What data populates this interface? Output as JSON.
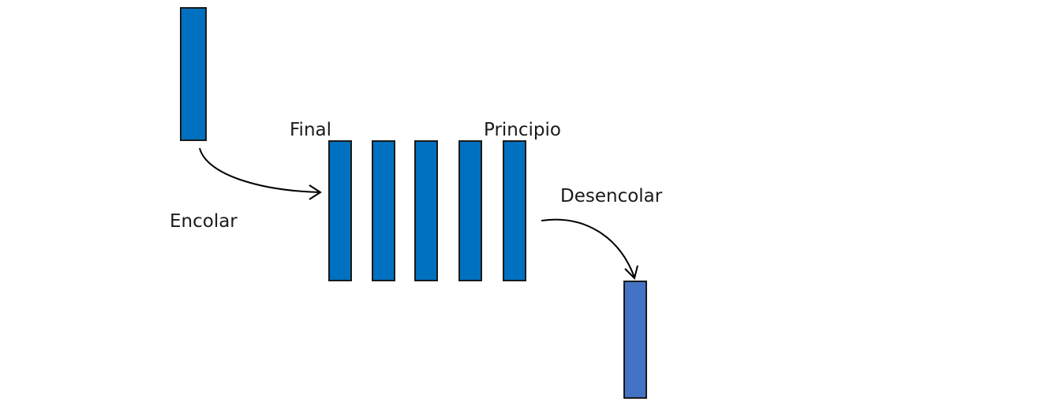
{
  "labels": {
    "final": "Final",
    "principio": "Principio",
    "encolar": "Encolar",
    "desencolar": "Desencolar"
  },
  "queue": {
    "element_count": 5
  },
  "colors": {
    "queue_element": "#0070C0",
    "incoming_element": "#0070C0",
    "dequeued_element": "#4472C4",
    "outline": "#1a1a1a",
    "arrow": "#000000"
  }
}
